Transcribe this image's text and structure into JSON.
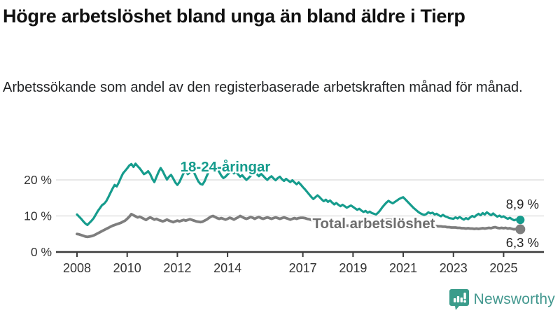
{
  "header": {
    "title": "Högre arbetslöshet bland unga än bland äldre i Tierp",
    "subtitle": "Arbetssökande som andel av den registerbaserade arbetskraften månad för månad."
  },
  "chart_data": {
    "type": "line",
    "title": "Arbetssökande som andel av den registerbaserade arbetskraften månad för månad",
    "x_start_year": 2008,
    "x_step": 0.0833,
    "x_end_label": "2025 (september)",
    "x_ticks": [
      2008,
      2010,
      2012,
      2014,
      2017,
      2019,
      2021,
      2023,
      2025
    ],
    "y_ticks": [
      {
        "value": 0,
        "label": "0 %"
      },
      {
        "value": 10,
        "label": "10 %"
      },
      {
        "value": 20,
        "label": "20 %"
      }
    ],
    "ylim": [
      0,
      27
    ],
    "grid": "horizontal",
    "legend": "inline-labels",
    "colors": {
      "youth": "#169c8d",
      "total": "#7e7e7e",
      "grid": "#d9d9d9",
      "axis": "#3c3c3c",
      "tick_text": "#333333",
      "value_text": "#222222"
    },
    "series": [
      {
        "name": "18-24-åringar",
        "color": "#169c8d",
        "end_label": "8,9 %",
        "end_value": 8.9,
        "values": [
          10.4,
          9.8,
          9.2,
          8.5,
          7.9,
          7.5,
          8.1,
          8.7,
          9.4,
          10.4,
          11.4,
          12.2,
          13.0,
          13.4,
          14.1,
          15.2,
          16.4,
          17.6,
          18.6,
          18.2,
          19.3,
          20.6,
          21.8,
          22.5,
          23.2,
          24.0,
          24.4,
          23.6,
          24.5,
          23.8,
          23.2,
          22.4,
          21.6,
          21.9,
          22.4,
          21.6,
          20.3,
          19.4,
          20.8,
          22.2,
          23.3,
          22.4,
          21.2,
          20.1,
          20.9,
          21.4,
          20.4,
          19.3,
          18.6,
          19.4,
          20.7,
          21.9,
          22.4,
          21.6,
          22.1,
          22.9,
          22.0,
          20.8,
          19.6,
          18.9,
          18.7,
          19.6,
          21.0,
          22.3,
          23.3,
          23.6,
          22.8,
          23.3,
          22.2,
          21.2,
          20.5,
          20.9,
          21.5,
          22.1,
          22.5,
          21.8,
          22.3,
          21.6,
          20.9,
          21.3,
          20.6,
          20.0,
          20.5,
          21.1,
          21.7,
          22.2,
          21.6,
          21.0,
          21.7,
          21.1,
          20.5,
          20.0,
          20.6,
          21.0,
          20.4,
          19.9,
          20.5,
          20.9,
          20.2,
          19.7,
          20.3,
          19.8,
          19.4,
          19.9,
          19.3,
          18.8,
          19.3,
          18.7,
          18.0,
          17.4,
          16.7,
          16.0,
          15.3,
          14.7,
          15.2,
          15.7,
          15.2,
          14.6,
          14.1,
          14.5,
          13.9,
          14.3,
          13.7,
          13.2,
          13.6,
          13.1,
          12.7,
          13.1,
          12.7,
          12.3,
          12.6,
          12.9,
          12.5,
          12.1,
          11.7,
          12.0,
          11.5,
          11.1,
          11.4,
          10.9,
          11.2,
          10.8,
          10.6,
          10.4,
          10.9,
          11.6,
          12.4,
          13.1,
          13.7,
          14.2,
          13.8,
          13.5,
          13.9,
          14.3,
          14.7,
          15.0,
          15.2,
          14.6,
          14.0,
          13.4,
          12.8,
          12.2,
          11.7,
          11.2,
          10.8,
          10.5,
          10.3,
          10.5,
          11.0,
          10.7,
          10.9,
          10.4,
          10.6,
          10.2,
          9.9,
          10.3,
          9.9,
          9.7,
          9.4,
          9.3,
          9.2,
          9.6,
          9.3,
          9.7,
          9.3,
          9.0,
          9.4,
          9.1,
          9.6,
          10.0,
          9.7,
          10.2,
          10.6,
          10.2,
          10.8,
          10.4,
          11.0,
          10.6,
          10.2,
          10.7,
          10.2,
          9.8,
          10.1,
          9.7,
          9.9,
          9.5,
          9.2,
          9.5,
          9.1,
          8.8,
          9.0,
          8.8,
          8.9
        ]
      },
      {
        "name": "Total arbetslöshet",
        "color": "#7e7e7e",
        "end_label": "6,3 %",
        "end_value": 6.3,
        "values": [
          5.0,
          4.9,
          4.7,
          4.5,
          4.3,
          4.2,
          4.3,
          4.4,
          4.6,
          4.9,
          5.2,
          5.5,
          5.8,
          6.1,
          6.4,
          6.7,
          7.0,
          7.3,
          7.5,
          7.7,
          7.9,
          8.1,
          8.4,
          8.7,
          9.2,
          9.8,
          10.5,
          10.2,
          9.9,
          9.6,
          9.8,
          9.5,
          9.2,
          8.9,
          9.3,
          9.6,
          9.3,
          9.0,
          9.2,
          8.9,
          8.7,
          8.5,
          8.7,
          9.0,
          8.7,
          8.5,
          8.3,
          8.5,
          8.7,
          8.5,
          8.7,
          8.9,
          8.7,
          8.9,
          9.1,
          8.9,
          8.7,
          8.5,
          8.4,
          8.3,
          8.4,
          8.7,
          9.0,
          9.4,
          9.8,
          10.0,
          9.7,
          9.4,
          9.2,
          9.4,
          9.2,
          9.0,
          9.2,
          9.5,
          9.3,
          9.0,
          9.3,
          9.6,
          10.0,
          9.7,
          9.4,
          9.2,
          9.4,
          9.7,
          9.5,
          9.2,
          9.5,
          9.7,
          9.4,
          9.2,
          9.4,
          9.6,
          9.4,
          9.2,
          9.4,
          9.6,
          9.4,
          9.2,
          9.4,
          9.6,
          9.4,
          9.2,
          9.0,
          9.2,
          9.4,
          9.2,
          9.4,
          9.5,
          9.5,
          9.4,
          9.2,
          9.1,
          8.9,
          8.8,
          8.6,
          8.5,
          8.4,
          8.3,
          8.2,
          8.1,
          8.0,
          7.9,
          7.8,
          7.7,
          7.6,
          7.5,
          7.5,
          7.4,
          7.4,
          7.3,
          7.3,
          7.4,
          7.4,
          7.5,
          7.5,
          7.6,
          7.6,
          7.7,
          7.7,
          7.8,
          7.8,
          7.9,
          8.0,
          8.1,
          8.2,
          8.4,
          8.6,
          8.8,
          8.9,
          9.0,
          8.9,
          8.8,
          8.7,
          8.6,
          8.5,
          8.4,
          8.2,
          8.1,
          8.0,
          7.9,
          7.8,
          7.7,
          7.6,
          7.5,
          7.5,
          7.4,
          7.4,
          7.5,
          7.4,
          7.3,
          7.3,
          7.2,
          7.2,
          7.1,
          7.1,
          7.0,
          7.0,
          6.9,
          6.9,
          6.8,
          6.8,
          6.8,
          6.7,
          6.7,
          6.6,
          6.6,
          6.5,
          6.6,
          6.5,
          6.5,
          6.4,
          6.5,
          6.4,
          6.5,
          6.6,
          6.5,
          6.6,
          6.7,
          6.6,
          6.8,
          6.9,
          6.7,
          6.6,
          6.7,
          6.6,
          6.7,
          6.5,
          6.6,
          6.4,
          6.3,
          6.4,
          6.3,
          6.3
        ]
      }
    ]
  },
  "footer": {
    "brand": "Newsworthy",
    "brand_color": "#43988f",
    "icon_color": "#3a9c8b"
  }
}
